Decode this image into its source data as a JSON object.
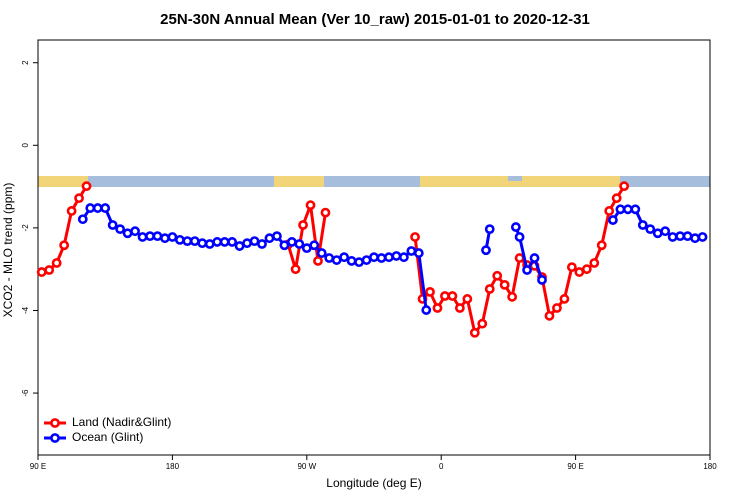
{
  "chart_data": {
    "type": "line",
    "title": "25N-30N Annual Mean (Ver 10_raw)   2015-01-01 to 2020-12-31",
    "xlabel": "Longitude (deg E)",
    "ylabel": "XCO2 - MLO trend (ppm)",
    "xlim": [
      90,
      540
    ],
    "ylim": [
      -7.5,
      2.55
    ],
    "xticks": [
      {
        "value": 90,
        "label": "90 E"
      },
      180,
      {
        "value": 270,
        "label": "90 W"
      },
      {
        "value": 360,
        "label": "0"
      },
      {
        "value": 450,
        "label": "90 E"
      },
      {
        "value": 540,
        "label": "180"
      }
    ],
    "yticks": [
      2,
      0,
      -2,
      -4,
      -6
    ],
    "legend": "bottom-left",
    "series": [
      {
        "name": "Land (Nadir&Glint)",
        "color": "#ff0000",
        "x": [
          92.5,
          97.5,
          102.5,
          107.5,
          112.5,
          117.5,
          122.5,
          null,
          257.5,
          262.5,
          267.5,
          272.5,
          277.5,
          282.5,
          null,
          342.5,
          347.5,
          352.5,
          357.5,
          362.5,
          367.5,
          372.5,
          377.5,
          382.5,
          387.5,
          392.5,
          397.5,
          402.5,
          407.5,
          412.5,
          417.5,
          422.5,
          427.5,
          432.5,
          437.5,
          442.5,
          447.5,
          452.5,
          457.5,
          462.5,
          467.5,
          472.5,
          477.5,
          482.5
        ],
        "values": [
          -3.07,
          -3.02,
          -2.85,
          -2.42,
          -1.59,
          -1.28,
          -0.99,
          null,
          -2.4,
          -3.0,
          -1.93,
          -1.45,
          -2.8,
          -1.63,
          null,
          -2.22,
          -3.72,
          -3.55,
          -3.94,
          -3.65,
          -3.65,
          -3.94,
          -3.72,
          -4.54,
          -4.32,
          -3.48,
          -3.16,
          -3.38,
          -3.67,
          -2.73,
          -2.9,
          -2.92,
          -3.19,
          -4.13,
          -3.94,
          -3.72,
          -2.95,
          -3.07,
          -3.0,
          -2.85,
          -2.42,
          -1.59,
          -1.28,
          -0.99
        ]
      },
      {
        "name": "Ocean (Glint)",
        "color": "#0000ff",
        "x": [
          120,
          125,
          130,
          135,
          140,
          145,
          150,
          155,
          160,
          165,
          170,
          175,
          180,
          185,
          190,
          195,
          200,
          205,
          210,
          215,
          220,
          225,
          230,
          235,
          240,
          245,
          250,
          255,
          260,
          265,
          270,
          275,
          280,
          285,
          290,
          295,
          300,
          305,
          310,
          315,
          320,
          325,
          330,
          335,
          340,
          345,
          350,
          null,
          390,
          392.5,
          null,
          410,
          412.5,
          417.5,
          422.5,
          427.5,
          null,
          475,
          480,
          485,
          490,
          495,
          500,
          505,
          510,
          515,
          520,
          525,
          530,
          535
        ],
        "values": [
          -1.79,
          -1.52,
          -1.52,
          -1.52,
          -1.93,
          -2.03,
          -2.13,
          -2.08,
          -2.22,
          -2.2,
          -2.2,
          -2.25,
          -2.22,
          -2.29,
          -2.32,
          -2.32,
          -2.37,
          -2.39,
          -2.34,
          -2.34,
          -2.34,
          -2.44,
          -2.37,
          -2.32,
          -2.39,
          -2.25,
          -2.2,
          -2.42,
          -2.34,
          -2.39,
          -2.49,
          -2.42,
          -2.61,
          -2.73,
          -2.78,
          -2.71,
          -2.8,
          -2.83,
          -2.78,
          -2.71,
          -2.73,
          -2.71,
          -2.68,
          -2.71,
          -2.56,
          -2.61,
          -3.99,
          null,
          -2.54,
          -2.03,
          null,
          -1.98,
          -2.22,
          -3.02,
          -2.73,
          -3.26,
          null,
          -1.81,
          -1.55,
          -1.55,
          -1.55,
          -1.93,
          -2.03,
          -2.13,
          -2.08,
          -2.22,
          -2.2,
          -2.2,
          -2.25,
          -2.22
        ]
      }
    ]
  }
}
